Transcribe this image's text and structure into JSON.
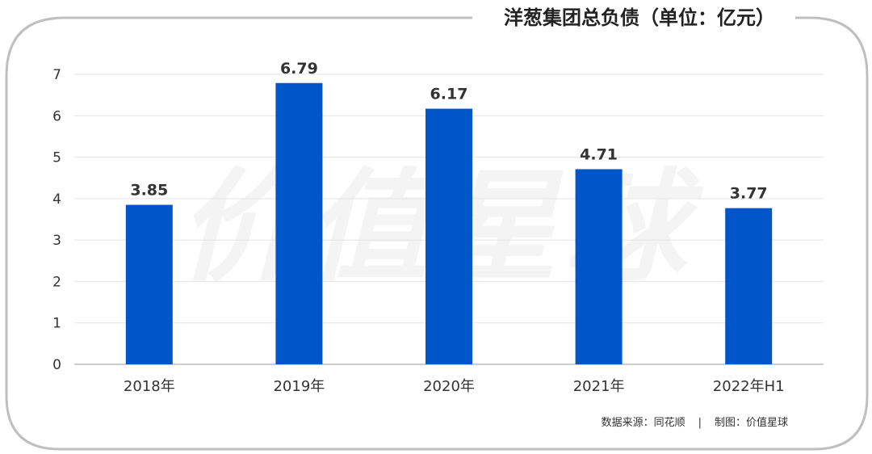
{
  "watermark": "价值星球",
  "source_text": "数据来源：同花顺",
  "separator": "|",
  "credit_text": "制图：价值星球",
  "colors": {
    "bar": "#0055c8",
    "frame": "#bfbfbf",
    "grid": "#e4e4e4",
    "axis": "#bdbdbd"
  },
  "chart_data": {
    "type": "bar",
    "title": "洋葱集团总负债（单位：亿元）",
    "xlabel": "",
    "ylabel": "",
    "categories": [
      "2018年",
      "2019年",
      "2020年",
      "2021年",
      "2022年H1"
    ],
    "values": [
      3.85,
      6.79,
      6.17,
      4.71,
      3.77
    ],
    "data_labels": [
      "3.85",
      "6.79",
      "6.17",
      "4.71",
      "3.77"
    ],
    "yticks": [
      0,
      1,
      2,
      3,
      4,
      5,
      6,
      7
    ],
    "ylim": [
      0,
      7
    ],
    "grid": true,
    "legend": "none"
  }
}
